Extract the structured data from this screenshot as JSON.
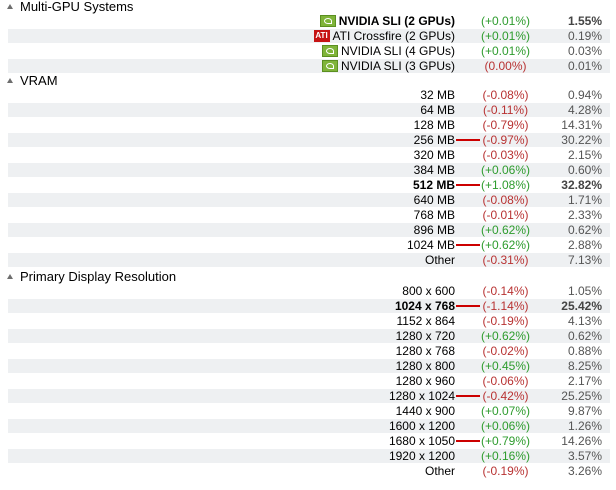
{
  "sections": [
    {
      "title": "Multi-GPU Systems",
      "rows": [
        {
          "label": "NVIDIA SLI (2 GPUs)",
          "change": "(+0.01%)",
          "trend": "pos",
          "percent": "1.55%",
          "bold": true,
          "icon": "nvidia-icon"
        },
        {
          "label": "ATI Crossfire (2 GPUs)",
          "change": "(+0.01%)",
          "trend": "pos",
          "percent": "0.19%",
          "bold": false,
          "icon": "ati-icon"
        },
        {
          "label": "NVIDIA SLI (4 GPUs)",
          "change": "(+0.01%)",
          "trend": "pos",
          "percent": "0.03%",
          "bold": false,
          "icon": "nvidia-icon"
        },
        {
          "label": "NVIDIA SLI (3 GPUs)",
          "change": "(0.00%)",
          "trend": "zero",
          "percent": "0.01%",
          "bold": false,
          "icon": "nvidia-icon"
        }
      ]
    },
    {
      "title": "VRAM",
      "rows": [
        {
          "label": "32 MB",
          "change": "(-0.08%)",
          "trend": "neg",
          "percent": "0.94%",
          "bold": false
        },
        {
          "label": "64 MB",
          "change": "(-0.11%)",
          "trend": "neg",
          "percent": "4.28%",
          "bold": false
        },
        {
          "label": "128 MB",
          "change": "(-0.79%)",
          "trend": "neg",
          "percent": "14.31%",
          "bold": false
        },
        {
          "label": "256 MB",
          "change": "(-0.97%)",
          "trend": "neg",
          "percent": "30.22%",
          "bold": false,
          "flag": true
        },
        {
          "label": "320 MB",
          "change": "(-0.03%)",
          "trend": "neg",
          "percent": "2.15%",
          "bold": false
        },
        {
          "label": "384 MB",
          "change": "(+0.06%)",
          "trend": "pos",
          "percent": "0.60%",
          "bold": false
        },
        {
          "label": "512 MB",
          "change": "(+1.08%)",
          "trend": "pos",
          "percent": "32.82%",
          "bold": true,
          "flag": true
        },
        {
          "label": "640 MB",
          "change": "(-0.08%)",
          "trend": "neg",
          "percent": "1.71%",
          "bold": false
        },
        {
          "label": "768 MB",
          "change": "(-0.01%)",
          "trend": "neg",
          "percent": "2.33%",
          "bold": false
        },
        {
          "label": "896 MB",
          "change": "(+0.62%)",
          "trend": "pos",
          "percent": "0.62%",
          "bold": false
        },
        {
          "label": "1024 MB",
          "change": "(+0.62%)",
          "trend": "pos",
          "percent": "2.88%",
          "bold": false,
          "flag": true
        },
        {
          "label": "Other",
          "change": "(-0.31%)",
          "trend": "neg",
          "percent": "7.13%",
          "bold": false
        }
      ]
    },
    {
      "title": "Primary Display Resolution",
      "rows": [
        {
          "label": "800 x 600",
          "change": "(-0.14%)",
          "trend": "neg",
          "percent": "1.05%",
          "bold": false
        },
        {
          "label": "1024 x 768",
          "change": "(-1.14%)",
          "trend": "neg",
          "percent": "25.42%",
          "bold": true,
          "flag": true
        },
        {
          "label": "1152 x 864",
          "change": "(-0.19%)",
          "trend": "neg",
          "percent": "4.13%",
          "bold": false
        },
        {
          "label": "1280 x 720",
          "change": "(+0.62%)",
          "trend": "pos",
          "percent": "0.62%",
          "bold": false
        },
        {
          "label": "1280 x 768",
          "change": "(-0.02%)",
          "trend": "neg",
          "percent": "0.88%",
          "bold": false
        },
        {
          "label": "1280 x 800",
          "change": "(+0.45%)",
          "trend": "pos",
          "percent": "8.25%",
          "bold": false
        },
        {
          "label": "1280 x 960",
          "change": "(-0.06%)",
          "trend": "neg",
          "percent": "2.17%",
          "bold": false
        },
        {
          "label": "1280 x 1024",
          "change": "(-0.42%)",
          "trend": "neg",
          "percent": "25.25%",
          "bold": false,
          "flag": true
        },
        {
          "label": "1440 x 900",
          "change": "(+0.07%)",
          "trend": "pos",
          "percent": "9.87%",
          "bold": false
        },
        {
          "label": "1600 x 1200",
          "change": "(+0.06%)",
          "trend": "pos",
          "percent": "1.26%",
          "bold": false
        },
        {
          "label": "1680 x 1050",
          "change": "(+0.79%)",
          "trend": "pos",
          "percent": "14.26%",
          "bold": false,
          "flag": true
        },
        {
          "label": "1920 x 1200",
          "change": "(+0.16%)",
          "trend": "pos",
          "percent": "3.57%",
          "bold": false
        },
        {
          "label": "Other",
          "change": "(-0.19%)",
          "trend": "neg",
          "percent": "3.26%",
          "bold": false
        }
      ]
    }
  ],
  "icons": {
    "nvidia-icon": "",
    "ati-icon": "ATI"
  },
  "colors": {
    "positive": "#2e9c2e",
    "negative": "#b83232",
    "flag": "#cc0000",
    "stripe": "#eef0f2"
  }
}
